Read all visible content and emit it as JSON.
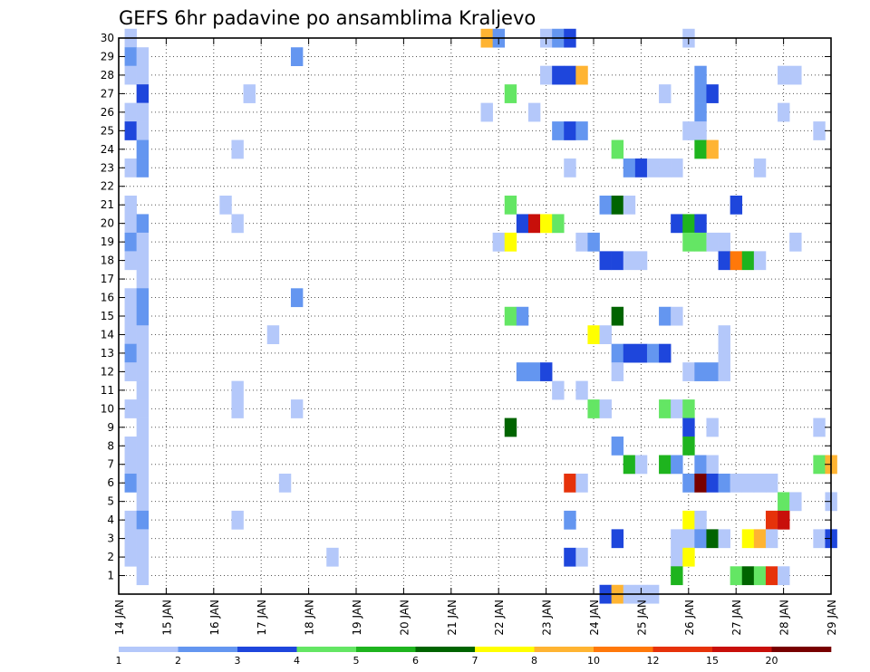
{
  "chart_data": {
    "type": "heatmap",
    "title": "GEFS 6hr padavine po ansamblima Kraljevo",
    "xlabel": "",
    "ylabel": "",
    "x_ticks": [
      "14 JAN",
      "15 JAN",
      "16 JAN",
      "17 JAN",
      "18 JAN",
      "19 JAN",
      "20 JAN",
      "21 JAN",
      "22 JAN",
      "23 JAN",
      "24 JAN",
      "25 JAN",
      "26 JAN",
      "27 JAN",
      "28 JAN",
      "29 JAN"
    ],
    "y_ticks": [
      "1",
      "2",
      "3",
      "4",
      "5",
      "6",
      "7",
      "8",
      "9",
      "10",
      "11",
      "12",
      "13",
      "14",
      "15",
      "16",
      "17",
      "18",
      "19",
      "20",
      "21",
      "22",
      "23",
      "24",
      "25",
      "26",
      "27",
      "28",
      "29",
      "30"
    ],
    "xlim": [
      0,
      60
    ],
    "ylim": [
      0,
      30
    ],
    "x_step_hours": 6,
    "grid": true,
    "legend": {
      "placement": "bottom",
      "labels": [
        "1",
        "2",
        "3",
        "4",
        "5",
        "6",
        "7",
        "8",
        "10",
        "12",
        "15",
        "20"
      ],
      "colors": [
        "#b4c8fa",
        "#6496f0",
        "#1e46dc",
        "#64e664",
        "#1eb41e",
        "#006400",
        "#ffff00",
        "#ffb432",
        "#ff780a",
        "#e6320a",
        "#c80f0a",
        "#780000"
      ]
    },
    "colors": {
      "1": "#b4c8fa",
      "2": "#6496f0",
      "3": "#1e46dc",
      "4": "#64e664",
      "5": "#1eb41e",
      "6": "#006400",
      "7": "#ffff00",
      "8": "#ffb432",
      "10": "#ff780a",
      "12": "#e6320a",
      "15": "#c80f0a",
      "20": "#780000"
    },
    "series": [
      {
        "member": 30,
        "cells": [
          [
            1,
            1
          ],
          [
            31,
            8
          ],
          [
            32,
            2
          ],
          [
            36,
            1
          ],
          [
            37,
            2
          ],
          [
            38,
            3
          ],
          [
            48,
            1
          ]
        ]
      },
      {
        "member": 29,
        "cells": [
          [
            1,
            2
          ],
          [
            2,
            1
          ],
          [
            15,
            2
          ]
        ]
      },
      {
        "member": 28,
        "cells": [
          [
            1,
            1
          ],
          [
            2,
            1
          ],
          [
            36,
            1
          ],
          [
            37,
            3
          ],
          [
            38,
            3
          ],
          [
            39,
            8
          ],
          [
            49,
            2
          ],
          [
            56,
            1
          ],
          [
            57,
            1
          ]
        ]
      },
      {
        "member": 27,
        "cells": [
          [
            2,
            3
          ],
          [
            11,
            1
          ],
          [
            33,
            4
          ],
          [
            46,
            1
          ],
          [
            49,
            2
          ],
          [
            50,
            3
          ]
        ]
      },
      {
        "member": 26,
        "cells": [
          [
            1,
            1
          ],
          [
            2,
            1
          ],
          [
            31,
            1
          ],
          [
            35,
            1
          ],
          [
            49,
            2
          ],
          [
            56,
            1
          ]
        ]
      },
      {
        "member": 25,
        "cells": [
          [
            1,
            3
          ],
          [
            2,
            1
          ],
          [
            37,
            2
          ],
          [
            38,
            3
          ],
          [
            39,
            2
          ],
          [
            48,
            1
          ],
          [
            49,
            1
          ],
          [
            59,
            1
          ]
        ]
      },
      {
        "member": 24,
        "cells": [
          [
            2,
            2
          ],
          [
            10,
            1
          ],
          [
            42,
            4
          ],
          [
            49,
            5
          ],
          [
            50,
            8
          ]
        ]
      },
      {
        "member": 23,
        "cells": [
          [
            1,
            1
          ],
          [
            2,
            2
          ],
          [
            38,
            1
          ],
          [
            43,
            2
          ],
          [
            44,
            3
          ],
          [
            45,
            1
          ],
          [
            46,
            1
          ],
          [
            47,
            1
          ],
          [
            54,
            1
          ]
        ]
      },
      {
        "member": 21,
        "cells": [
          [
            1,
            1
          ],
          [
            9,
            1
          ],
          [
            33,
            4
          ],
          [
            41,
            2
          ],
          [
            42,
            6
          ],
          [
            43,
            1
          ],
          [
            52,
            3
          ]
        ]
      },
      {
        "member": 20,
        "cells": [
          [
            1,
            1
          ],
          [
            2,
            2
          ],
          [
            10,
            1
          ],
          [
            34,
            3
          ],
          [
            35,
            15
          ],
          [
            36,
            7
          ],
          [
            37,
            4
          ],
          [
            47,
            3
          ],
          [
            48,
            5
          ],
          [
            49,
            3
          ]
        ]
      },
      {
        "member": 19,
        "cells": [
          [
            1,
            2
          ],
          [
            2,
            1
          ],
          [
            32,
            1
          ],
          [
            33,
            7
          ],
          [
            39,
            1
          ],
          [
            40,
            2
          ],
          [
            48,
            4
          ],
          [
            49,
            4
          ],
          [
            50,
            1
          ],
          [
            51,
            1
          ],
          [
            57,
            1
          ]
        ]
      },
      {
        "member": 18,
        "cells": [
          [
            1,
            1
          ],
          [
            2,
            1
          ],
          [
            41,
            3
          ],
          [
            42,
            3
          ],
          [
            43,
            1
          ],
          [
            44,
            1
          ],
          [
            51,
            3
          ],
          [
            52,
            10
          ],
          [
            53,
            5
          ],
          [
            54,
            1
          ]
        ]
      },
      {
        "member": 17,
        "cells": [
          [
            2,
            1
          ]
        ]
      },
      {
        "member": 16,
        "cells": [
          [
            1,
            1
          ],
          [
            2,
            2
          ],
          [
            15,
            2
          ]
        ]
      },
      {
        "member": 15,
        "cells": [
          [
            1,
            1
          ],
          [
            2,
            2
          ],
          [
            33,
            4
          ],
          [
            34,
            2
          ],
          [
            42,
            6
          ],
          [
            46,
            2
          ],
          [
            47,
            1
          ]
        ]
      },
      {
        "member": 14,
        "cells": [
          [
            1,
            1
          ],
          [
            2,
            1
          ],
          [
            13,
            1
          ],
          [
            40,
            7
          ],
          [
            41,
            1
          ],
          [
            51,
            1
          ]
        ]
      },
      {
        "member": 13,
        "cells": [
          [
            1,
            2
          ],
          [
            2,
            1
          ],
          [
            42,
            2
          ],
          [
            43,
            3
          ],
          [
            44,
            3
          ],
          [
            45,
            2
          ],
          [
            46,
            3
          ],
          [
            51,
            1
          ]
        ]
      },
      {
        "member": 12,
        "cells": [
          [
            1,
            1
          ],
          [
            2,
            1
          ],
          [
            34,
            2
          ],
          [
            35,
            2
          ],
          [
            36,
            3
          ],
          [
            42,
            1
          ],
          [
            48,
            1
          ],
          [
            49,
            2
          ],
          [
            50,
            2
          ],
          [
            51,
            1
          ]
        ]
      },
      {
        "member": 11,
        "cells": [
          [
            2,
            1
          ],
          [
            10,
            1
          ],
          [
            37,
            1
          ],
          [
            39,
            1
          ]
        ]
      },
      {
        "member": 10,
        "cells": [
          [
            1,
            1
          ],
          [
            2,
            1
          ],
          [
            10,
            1
          ],
          [
            15,
            1
          ],
          [
            40,
            4
          ],
          [
            41,
            1
          ],
          [
            46,
            4
          ],
          [
            47,
            1
          ],
          [
            48,
            4
          ]
        ]
      },
      {
        "member": 9,
        "cells": [
          [
            2,
            1
          ],
          [
            33,
            6
          ],
          [
            48,
            3
          ],
          [
            50,
            1
          ],
          [
            59,
            1
          ]
        ]
      },
      {
        "member": 8,
        "cells": [
          [
            1,
            1
          ],
          [
            2,
            1
          ],
          [
            42,
            2
          ],
          [
            48,
            5
          ]
        ]
      },
      {
        "member": 7,
        "cells": [
          [
            1,
            1
          ],
          [
            2,
            1
          ],
          [
            43,
            5
          ],
          [
            44,
            1
          ],
          [
            46,
            5
          ],
          [
            47,
            2
          ],
          [
            49,
            2
          ],
          [
            50,
            1
          ],
          [
            59,
            4
          ],
          [
            60,
            8
          ]
        ]
      },
      {
        "member": 6,
        "cells": [
          [
            1,
            2
          ],
          [
            2,
            1
          ],
          [
            14,
            1
          ],
          [
            38,
            12
          ],
          [
            39,
            1
          ],
          [
            48,
            2
          ],
          [
            49,
            20
          ],
          [
            50,
            3
          ],
          [
            51,
            2
          ],
          [
            52,
            1
          ],
          [
            53,
            1
          ],
          [
            54,
            1
          ],
          [
            55,
            1
          ]
        ]
      },
      {
        "member": 5,
        "cells": [
          [
            2,
            1
          ],
          [
            56,
            4
          ],
          [
            57,
            1
          ],
          [
            60,
            1
          ]
        ]
      },
      {
        "member": 4,
        "cells": [
          [
            1,
            1
          ],
          [
            2,
            2
          ],
          [
            10,
            1
          ],
          [
            38,
            2
          ],
          [
            48,
            7
          ],
          [
            49,
            1
          ],
          [
            55,
            12
          ],
          [
            56,
            15
          ]
        ]
      },
      {
        "member": 3,
        "cells": [
          [
            1,
            1
          ],
          [
            2,
            1
          ],
          [
            42,
            3
          ],
          [
            47,
            1
          ],
          [
            48,
            1
          ],
          [
            49,
            2
          ],
          [
            50,
            6
          ],
          [
            51,
            1
          ],
          [
            53,
            7
          ],
          [
            54,
            8
          ],
          [
            55,
            1
          ],
          [
            59,
            1
          ],
          [
            60,
            3
          ]
        ]
      },
      {
        "member": 2,
        "cells": [
          [
            1,
            1
          ],
          [
            2,
            1
          ],
          [
            18,
            1
          ],
          [
            38,
            3
          ],
          [
            39,
            1
          ],
          [
            47,
            1
          ],
          [
            48,
            7
          ]
        ]
      },
      {
        "member": 1,
        "cells": [
          [
            2,
            1
          ],
          [
            47,
            5
          ],
          [
            52,
            4
          ],
          [
            53,
            6
          ],
          [
            54,
            4
          ],
          [
            55,
            12
          ],
          [
            56,
            1
          ]
        ]
      },
      {
        "member": 0,
        "cells": [
          [
            41,
            3
          ],
          [
            42,
            8
          ],
          [
            43,
            1
          ],
          [
            44,
            1
          ],
          [
            45,
            1
          ]
        ]
      }
    ]
  }
}
